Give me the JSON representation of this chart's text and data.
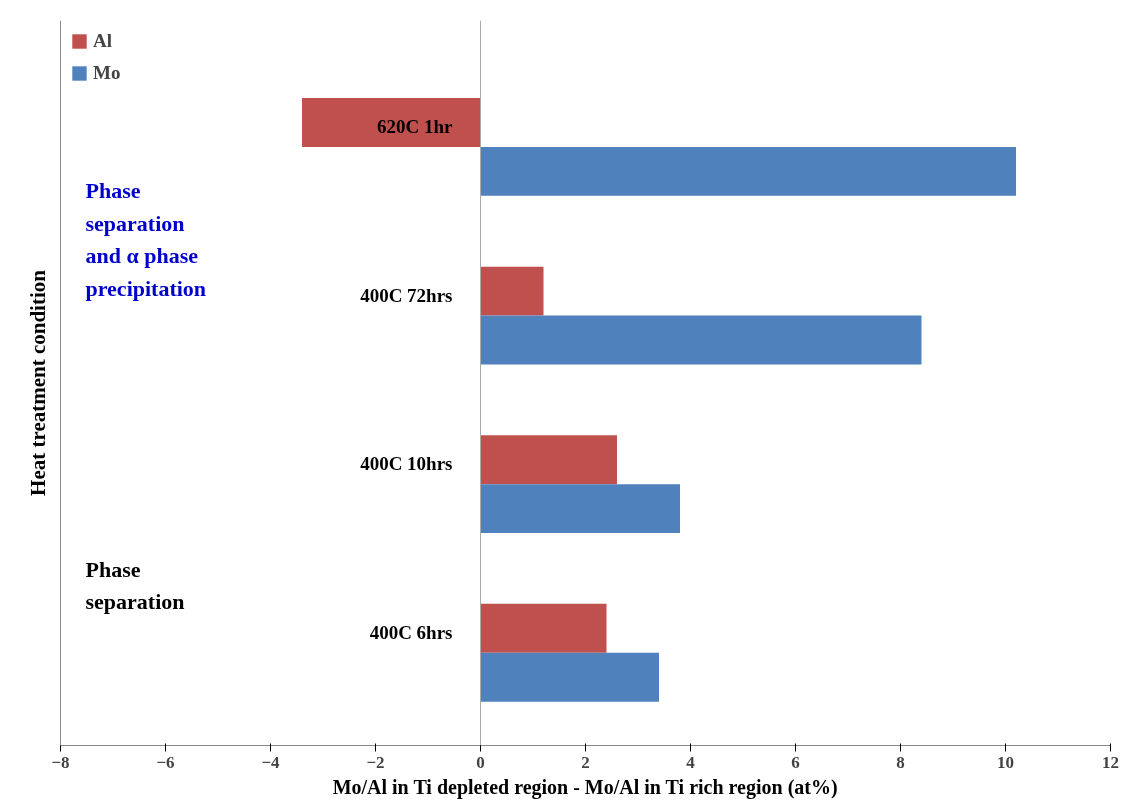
{
  "chart_data": {
    "type": "bar",
    "orientation": "horizontal",
    "xlabel": "Mo/Al in Ti depleted region - Mo/Al in Ti rich region (at%)",
    "ylabel": "Heat treatment condition",
    "categories": [
      "620C 1hr",
      "400C 72hrs",
      "400C 10hrs",
      "400C 6hrs"
    ],
    "series": [
      {
        "name": "Al",
        "color": "#c0504d",
        "values": [
          -3.4,
          1.2,
          2.6,
          2.4
        ]
      },
      {
        "name": "Mo",
        "color": "#4f81bd",
        "values": [
          10.2,
          8.4,
          3.8,
          3.4
        ]
      }
    ],
    "xlim": [
      -8,
      12
    ],
    "xticks": [
      -8,
      -6,
      -4,
      -2,
      0,
      2,
      4,
      6,
      8,
      10,
      12
    ],
    "annotations": [
      "Phase separation and α phase precipitation",
      "Phase separation"
    ],
    "grid": false,
    "legend": "top left"
  }
}
